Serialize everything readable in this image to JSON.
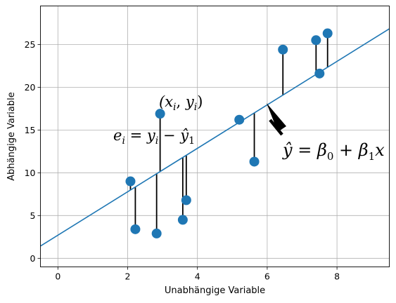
{
  "chart_data": {
    "type": "scatter",
    "title": "",
    "xlabel": "Unabhängige Variable",
    "ylabel": "Abhängige Variable",
    "xlim": [
      -0.5,
      9.5
    ],
    "ylim": [
      -1,
      29.5
    ],
    "xticks": [
      0,
      2,
      4,
      6,
      8
    ],
    "yticks": [
      0,
      5,
      10,
      15,
      20,
      25
    ],
    "grid": true,
    "colors": {
      "points": "#1f77b4",
      "regression_line": "#1f77b4",
      "residuals": "#000000",
      "grid": "#b0b0b0"
    },
    "regression_line": {
      "intercept": 2.7,
      "slope": 2.54
    },
    "points": [
      {
        "x": 2.08,
        "y": 9.0
      },
      {
        "x": 2.22,
        "y": 3.4
      },
      {
        "x": 2.83,
        "y": 2.9
      },
      {
        "x": 2.93,
        "y": 16.9
      },
      {
        "x": 3.58,
        "y": 4.5
      },
      {
        "x": 3.68,
        "y": 6.8
      },
      {
        "x": 5.2,
        "y": 16.2
      },
      {
        "x": 5.63,
        "y": 11.3
      },
      {
        "x": 6.45,
        "y": 24.4
      },
      {
        "x": 7.4,
        "y": 25.5
      },
      {
        "x": 7.5,
        "y": 21.6
      },
      {
        "x": 7.73,
        "y": 26.3
      }
    ],
    "annotations": {
      "point_label": "(x_i, y_i)",
      "residual_label": "e_i = y_i − ŷ_1",
      "line_label": "ŷ = β_0 + β_1 x"
    }
  }
}
